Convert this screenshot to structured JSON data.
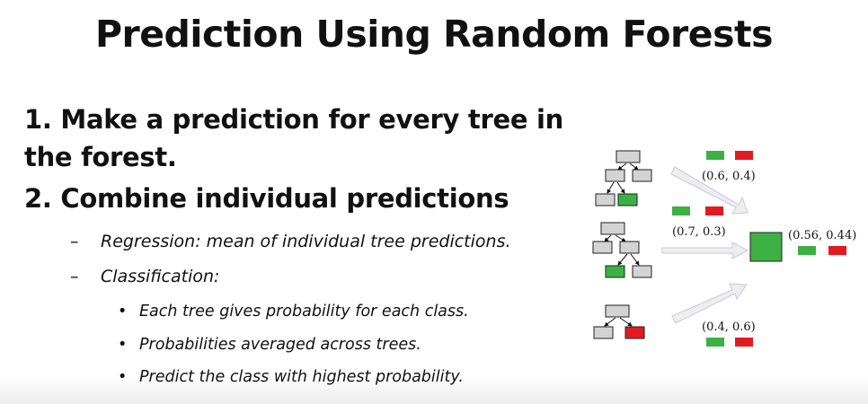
{
  "title": "Prediction Using Random Forests",
  "points": [
    {
      "line1": "1. Make a prediction for every tree in",
      "line2": "the forest."
    },
    {
      "line1": "2. Combine individual predictions"
    }
  ],
  "subpoints": [
    {
      "dash": "–",
      "text": "Regression: mean of individual tree predictions."
    },
    {
      "dash": "–",
      "text": "Classification:"
    }
  ],
  "bullets": [
    "Each tree gives probability for each class.",
    "Probabilities averaged across trees.",
    "Predict the class with highest probability."
  ],
  "bullet_glyph": "•",
  "diagram": {
    "trees": [
      {
        "prediction": "(0.6, 0.4)",
        "leaf_color": "#3cb043"
      },
      {
        "prediction": "(0.7, 0.3)",
        "leaf_color": "#3cb043"
      },
      {
        "prediction": "(0.4, 0.6)",
        "leaf_color": "#e11b22"
      }
    ],
    "combined": "(0.56, 0.44)",
    "colors": {
      "green": "#3cb043",
      "red": "#e11b22",
      "node": "#d3d3d3",
      "arrow": "#e8e8ee"
    }
  }
}
